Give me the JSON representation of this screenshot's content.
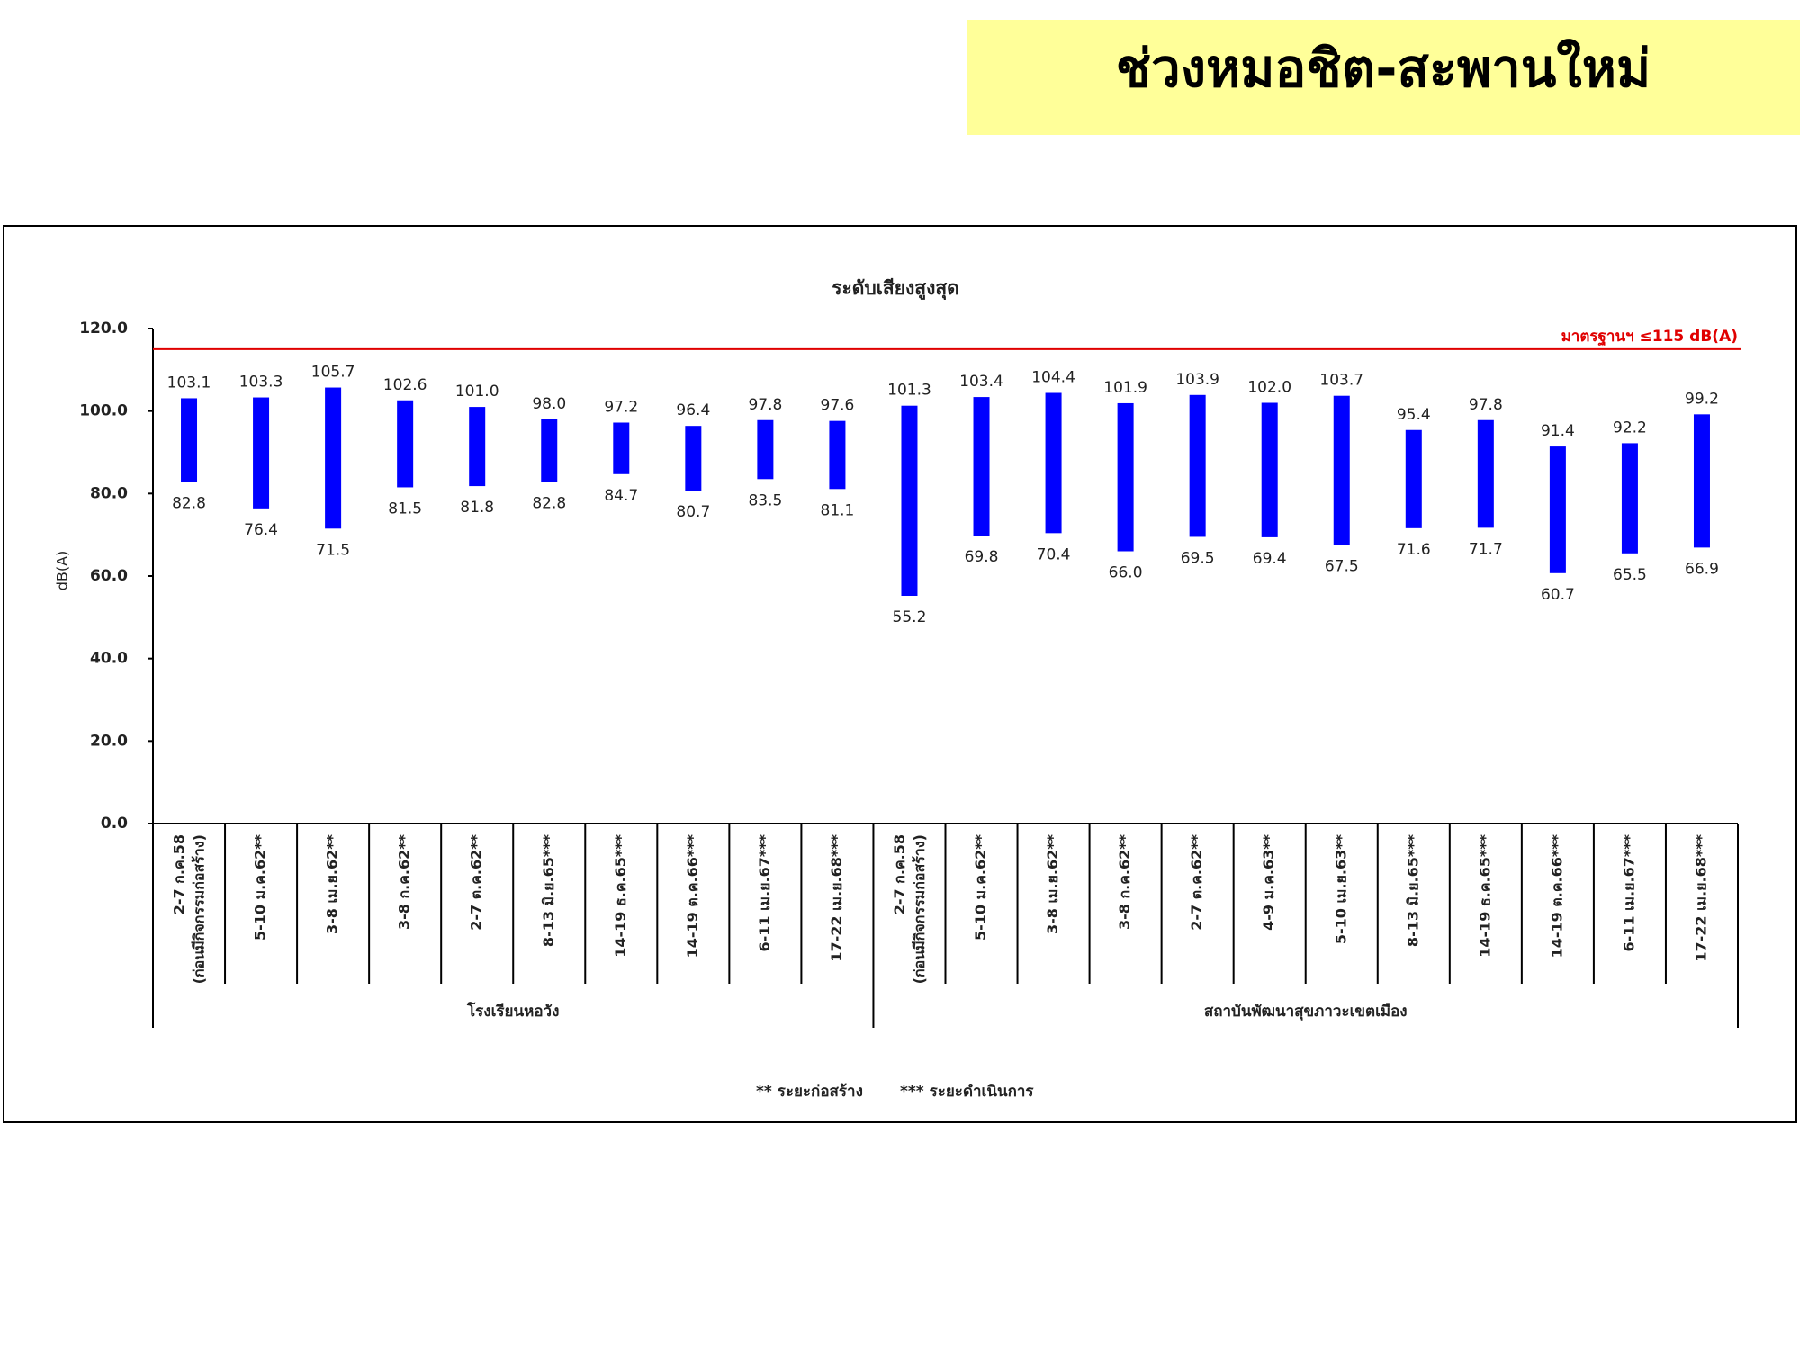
{
  "header": {
    "title": "ช่วงหมอชิต-สะพานใหม่"
  },
  "chart_data": {
    "type": "range-bar",
    "title": "ระดับเสียงสูงสุด",
    "y_label": "dB(A)",
    "categories": [
      [
        "2-7 ก.ค.58",
        "(ก่อนมีกิจกรรมก่อสร้าง)"
      ],
      "5-10 ม.ค.62**",
      "3-8 เม.ย.62**",
      "3-8 ก.ค.62**",
      "2-7 ต.ค.62**",
      "8-13 มิ.ย.65***",
      "14-19 ธ.ค.65***",
      "14-19 ต.ค.66***",
      "6-11 เม.ย.67***",
      "17-22 เม.ย.68***",
      [
        "2-7 ก.ค.58",
        "(ก่อนมีกิจกรรมก่อสร้าง)"
      ],
      "5-10 ม.ค.62**",
      "3-8 เม.ย.62**",
      "3-8 ก.ค.62**",
      "2-7 ต.ค.62**",
      "4-9 ม.ค.63**",
      "5-10 เม.ย.63**",
      "8-13 มิ.ย.65***",
      "14-19 ธ.ค.65***",
      "14-19 ต.ค.66***",
      "6-11 เม.ย.67***",
      "17-22 เม.ย.68***"
    ],
    "group_labels": [
      "โรงเรียนหอวัง",
      "สถาบันพัฒนาสุขภาวะเขตเมือง"
    ],
    "series": [
      {
        "color": "#0000ff",
        "values": [
          103.1,
          103.3,
          105.7,
          102.6,
          101.0,
          98.0,
          97.2,
          96.4,
          97.8,
          97.6,
          101.3,
          103.4,
          104.4,
          101.9,
          103.9,
          102.0,
          103.7,
          95.4,
          97.8,
          91.4,
          92.2,
          99.2
        ],
        "value_labels": [
          "103.1",
          "103.3",
          "105.7",
          "102.6",
          "101.0",
          "98.0",
          "97.2",
          "96.4",
          "97.8",
          "97.6",
          "101.3",
          "103.4",
          "104.4",
          "101.9",
          "103.9",
          "102.0",
          "103.7",
          "95.4",
          "97.8",
          "91.4",
          "92.2",
          "99.2"
        ]
      },
      {
        "color": "#0000ff",
        "values": [
          82.8,
          76.4,
          71.5,
          81.5,
          81.8,
          82.8,
          84.7,
          80.7,
          83.5,
          81.1,
          55.2,
          69.8,
          70.4,
          66.0,
          69.5,
          69.4,
          67.5,
          71.6,
          71.7,
          60.7,
          65.5,
          66.9
        ],
        "value_labels": [
          "82.8",
          "76.4",
          "71.5",
          "81.5",
          "81.8",
          "82.8",
          "84.7",
          "80.7",
          "83.5",
          "81.1",
          "55.2",
          "69.8",
          "70.4",
          "66.0",
          "69.5",
          "69.4",
          "67.5",
          "71.6",
          "71.7",
          "60.7",
          "65.5",
          "66.9"
        ]
      }
    ],
    "reference_line": {
      "value": 115,
      "label": "มาตรฐานฯ ≤115 dB(A)",
      "color": "#e00000"
    },
    "ylim": [
      0,
      120
    ],
    "yticks": [
      {
        "value": 0,
        "label": "0.0"
      },
      {
        "value": 20,
        "label": "20.0"
      },
      {
        "value": 40,
        "label": "40.0"
      },
      {
        "value": 60,
        "label": "60.0"
      },
      {
        "value": 80,
        "label": "80.0"
      },
      {
        "value": 100,
        "label": "100.0"
      },
      {
        "value": 120,
        "label": "120.0"
      }
    ],
    "notes": [
      "** ระยะก่อสร้าง",
      "*** ระยะดำเนินการ"
    ]
  }
}
